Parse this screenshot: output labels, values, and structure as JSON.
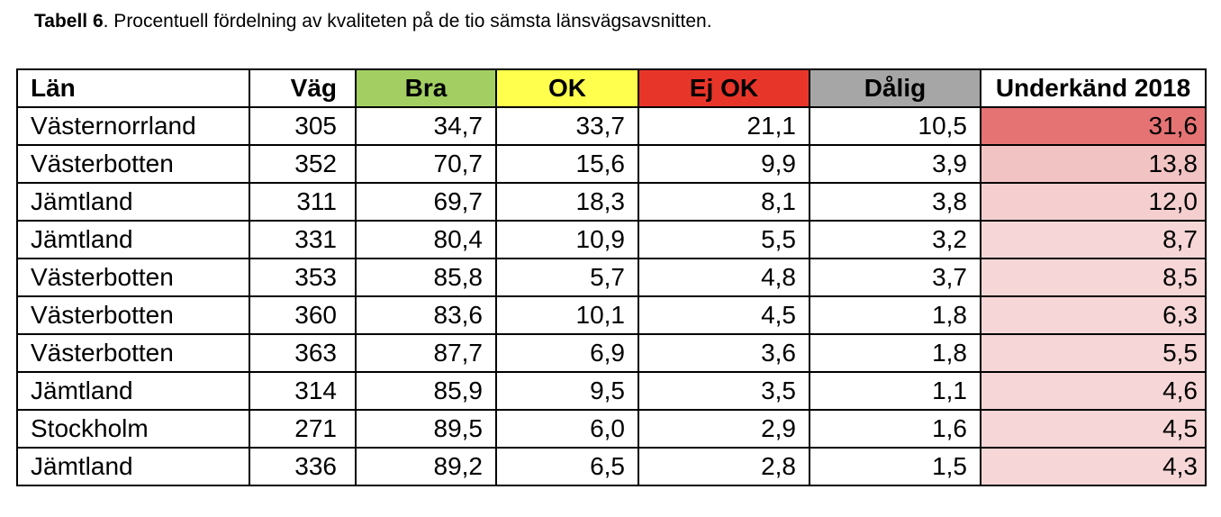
{
  "caption": {
    "label": "Tabell 6",
    "text": ". Procentuell fördelning av kvaliteten på de tio sämsta länsvägsavsnitten."
  },
  "colors": {
    "bra": "#a3cf62",
    "ok": "#ffff4d",
    "ejok": "#e8352a",
    "dalig": "#a6a6a6",
    "underkand_scale": [
      "#e57373",
      "#f2c3c3",
      "#f5cfcf",
      "#f6d6d6"
    ]
  },
  "headers": [
    "Län",
    "Väg",
    "Bra",
    "OK",
    "Ej OK",
    "Dålig",
    "Underkänd 2018"
  ],
  "rows": [
    {
      "lan": "Västernorrland",
      "vag": "305",
      "bra": "34,7",
      "ok": "33,7",
      "ejok": "21,1",
      "dalig": "10,5",
      "underkand": "31,6"
    },
    {
      "lan": "Västerbotten",
      "vag": "352",
      "bra": "70,7",
      "ok": "15,6",
      "ejok": "9,9",
      "dalig": "3,9",
      "underkand": "13,8"
    },
    {
      "lan": "Jämtland",
      "vag": "311",
      "bra": "69,7",
      "ok": "18,3",
      "ejok": "8,1",
      "dalig": "3,8",
      "underkand": "12,0"
    },
    {
      "lan": "Jämtland",
      "vag": "331",
      "bra": "80,4",
      "ok": "10,9",
      "ejok": "5,5",
      "dalig": "3,2",
      "underkand": "8,7"
    },
    {
      "lan": "Västerbotten",
      "vag": "353",
      "bra": "85,8",
      "ok": "5,7",
      "ejok": "4,8",
      "dalig": "3,7",
      "underkand": "8,5"
    },
    {
      "lan": "Västerbotten",
      "vag": "360",
      "bra": "83,6",
      "ok": "10,1",
      "ejok": "4,5",
      "dalig": "1,8",
      "underkand": "6,3"
    },
    {
      "lan": "Västerbotten",
      "vag": "363",
      "bra": "87,7",
      "ok": "6,9",
      "ejok": "3,6",
      "dalig": "1,8",
      "underkand": "5,5"
    },
    {
      "lan": "Jämtland",
      "vag": "314",
      "bra": "85,9",
      "ok": "9,5",
      "ejok": "3,5",
      "dalig": "1,1",
      "underkand": "4,6"
    },
    {
      "lan": "Stockholm",
      "vag": "271",
      "bra": "89,5",
      "ok": "6,0",
      "ejok": "2,9",
      "dalig": "1,6",
      "underkand": "4,5"
    },
    {
      "lan": "Jämtland",
      "vag": "336",
      "bra": "89,2",
      "ok": "6,5",
      "ejok": "2,8",
      "dalig": "1,5",
      "underkand": "4,3"
    }
  ]
}
